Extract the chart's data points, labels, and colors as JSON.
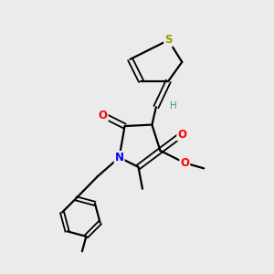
{
  "background_color": "#ebebeb",
  "atom_colors": {
    "S": "#999900",
    "N": "#0000ff",
    "O": "#ff0000",
    "C": "#000000",
    "H": "#4a9090"
  },
  "figsize": [
    3.0,
    3.0
  ],
  "dpi": 100
}
